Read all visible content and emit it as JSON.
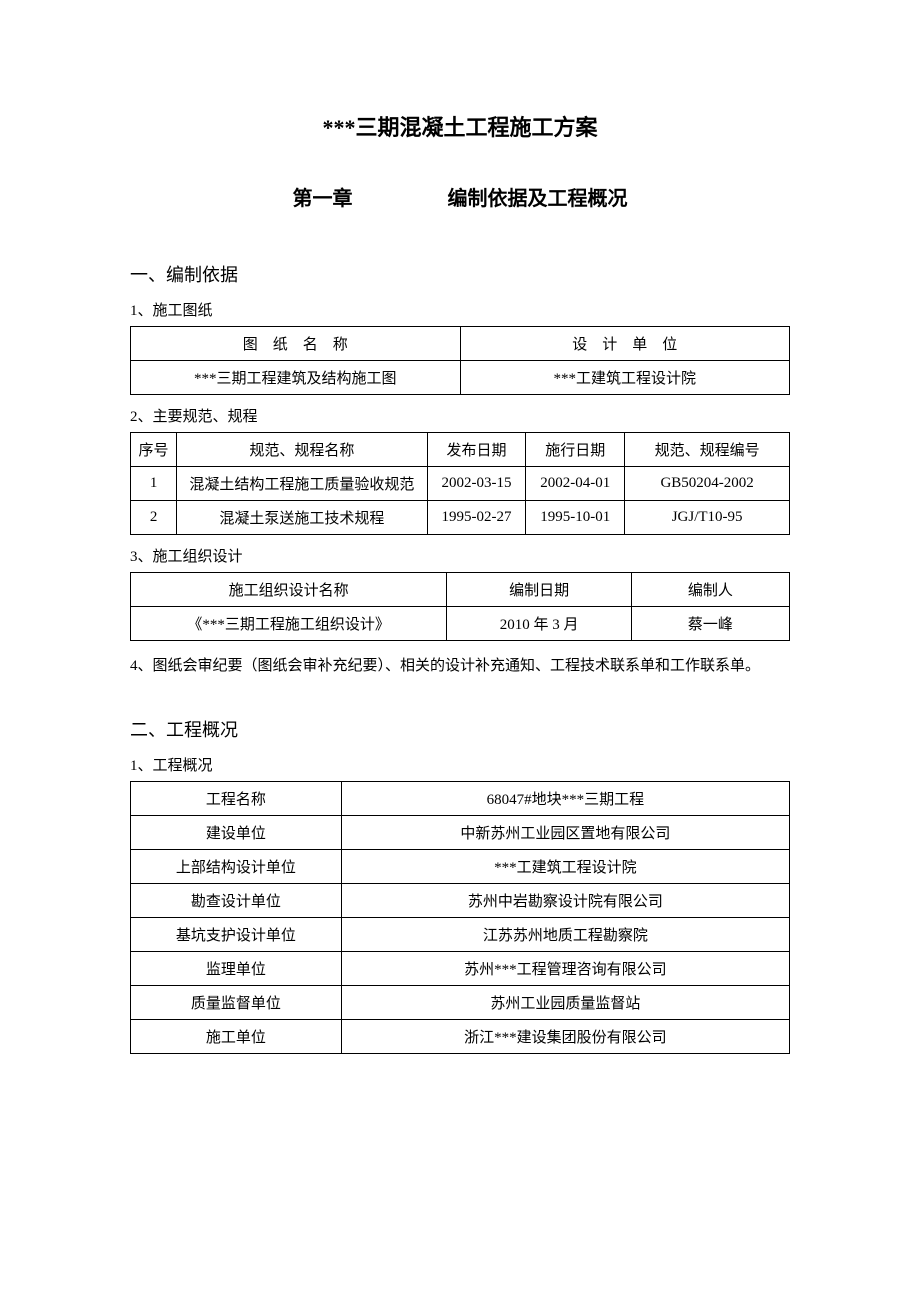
{
  "colors": {
    "text": "#000000",
    "background": "#ffffff",
    "border": "#000000"
  },
  "fonts": {
    "family": "SimSun",
    "title_size_pt": 16,
    "chapter_size_pt": 15,
    "section_size_pt": 14,
    "body_size_pt": 11
  },
  "doc_title": "***三期混凝土工程施工方案",
  "chapter": {
    "number": "第一章",
    "name": "编制依据及工程概况"
  },
  "section1": {
    "title": "一、编制依据",
    "sub1": {
      "label": "1、施工图纸",
      "table": {
        "headers": [
          "图　纸　名　称",
          "设　计　单　位"
        ],
        "rows": [
          [
            "***三期工程建筑及结构施工图",
            "***工建筑工程设计院"
          ]
        ]
      }
    },
    "sub2": {
      "label": "2、主要规范、规程",
      "table": {
        "headers": [
          "序号",
          "规范、规程名称",
          "发布日期",
          "施行日期",
          "规范、规程编号"
        ],
        "rows": [
          [
            "1",
            "混凝土结构工程施工质量验收规范",
            "2002-03-15",
            "2002-04-01",
            "GB50204-2002"
          ],
          [
            "2",
            "混凝土泵送施工技术规程",
            "1995-02-27",
            "1995-10-01",
            "JGJ/T10-95"
          ]
        ]
      }
    },
    "sub3": {
      "label": "3、施工组织设计",
      "table": {
        "headers": [
          "施工组织设计名称",
          "编制日期",
          "编制人"
        ],
        "rows": [
          [
            "《***三期工程施工组织设计》",
            "2010 年 3 月",
            "蔡一峰"
          ]
        ]
      }
    },
    "sub4": {
      "text": "4、图纸会审纪要（图纸会审补充纪要）、相关的设计补充通知、工程技术联系单和工作联系单。"
    }
  },
  "section2": {
    "title": "二、工程概况",
    "sub1": {
      "label": "1、工程概况",
      "table": {
        "rows": [
          [
            "工程名称",
            "68047#地块***三期工程"
          ],
          [
            "建设单位",
            "中新苏州工业园区置地有限公司"
          ],
          [
            "上部结构设计单位",
            "***工建筑工程设计院"
          ],
          [
            "勘查设计单位",
            "苏州中岩勘察设计院有限公司"
          ],
          [
            "基坑支护设计单位",
            "江苏苏州地质工程勘察院"
          ],
          [
            "监理单位",
            "苏州***工程管理咨询有限公司"
          ],
          [
            "质量监督单位",
            "苏州工业园质量监督站"
          ],
          [
            "施工单位",
            "浙江***建设集团股份有限公司"
          ]
        ]
      }
    }
  }
}
